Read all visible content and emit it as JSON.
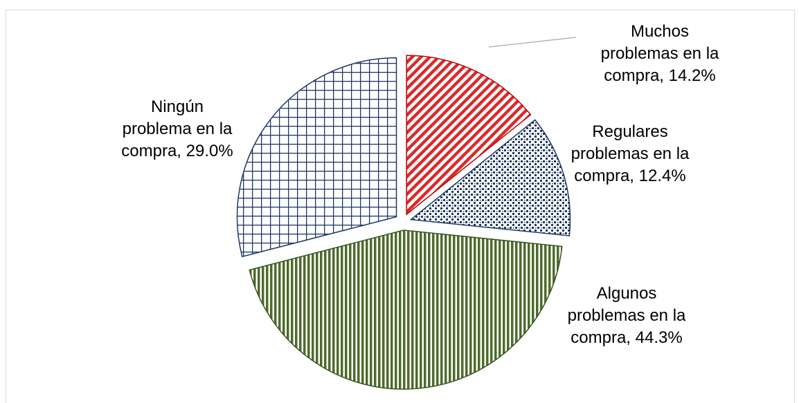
{
  "chart_data": {
    "type": "pie",
    "title": "",
    "exploded": true,
    "slices": [
      {
        "label_lines": [
          "Muchos",
          "problemas en la",
          "compra, 14.2%"
        ],
        "category": "Muchos problemas en la compra",
        "value": 14.2,
        "fill_pattern": "diagonal-stripes",
        "color": "#d92b2b",
        "leader_line": true
      },
      {
        "label_lines": [
          "Regulares",
          "problemas en la",
          "compra, 12.4%"
        ],
        "category": "Regulares problemas en la compra",
        "value": 12.4,
        "fill_pattern": "dotted",
        "color": "#1f3864",
        "leader_line": false
      },
      {
        "label_lines": [
          "Algunos",
          "problemas en la",
          "compra, 44.3%"
        ],
        "category": "Algunos problemas en la compra",
        "value": 44.3,
        "fill_pattern": "vertical-stripes",
        "color": "#4e6b2b",
        "leader_line": false
      },
      {
        "label_lines": [
          "Ningún",
          "problema en la",
          "compra, 29.0%"
        ],
        "category": "Ningún problema en la compra",
        "value": 29.0,
        "fill_pattern": "grid",
        "color": "#1f3864",
        "leader_line": false
      }
    ]
  }
}
